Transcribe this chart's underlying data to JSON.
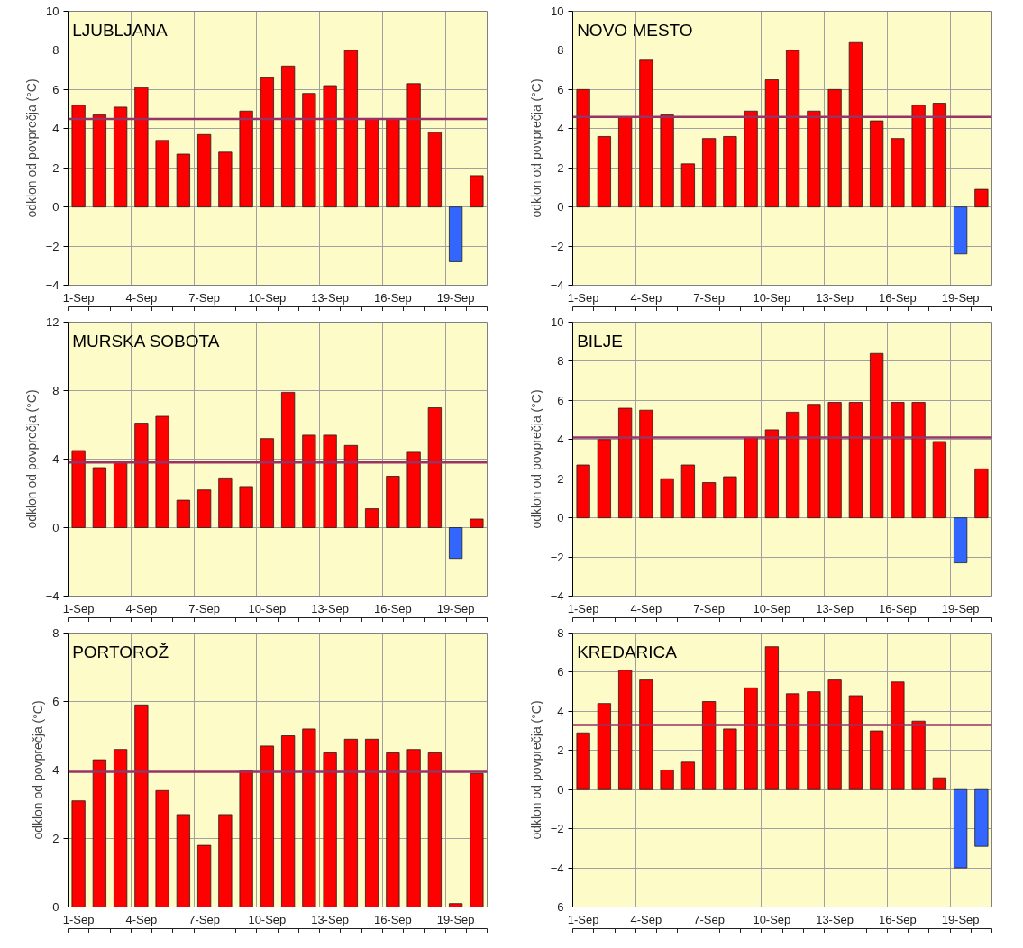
{
  "chart_data": [
    {
      "type": "bar",
      "title": "LJUBLJANA",
      "ylabel": "odklon od povprečja (°C)",
      "categories": [
        "1-Sep",
        null,
        null,
        "4-Sep",
        null,
        null,
        "7-Sep",
        null,
        null,
        "10-Sep",
        null,
        null,
        "13-Sep",
        null,
        null,
        "16-Sep",
        null,
        null,
        "19-Sep",
        null
      ],
      "values": [
        5.2,
        4.7,
        5.1,
        6.1,
        3.4,
        2.7,
        3.7,
        2.8,
        4.9,
        6.6,
        7.2,
        5.8,
        6.2,
        8.0,
        4.5,
        4.5,
        6.3,
        3.8,
        -2.8,
        1.6
      ],
      "colors": [
        "#ff0000",
        "#ff0000",
        "#ff0000",
        "#ff0000",
        "#ff0000",
        "#ff0000",
        "#ff0000",
        "#ff0000",
        "#ff0000",
        "#ff0000",
        "#ff0000",
        "#ff0000",
        "#ff0000",
        "#ff0000",
        "#ff0000",
        "#ff0000",
        "#ff0000",
        "#ff0000",
        "#3366ff",
        "#ff0000"
      ],
      "ylim": [
        -4,
        10
      ],
      "yticks": [
        -4,
        -2,
        0,
        2,
        4,
        6,
        8,
        10
      ],
      "grid": true,
      "ref_lines": [
        {
          "axis": "y",
          "value": 4.5,
          "color": "#993366"
        }
      ]
    },
    {
      "type": "bar",
      "title": "NOVO MESTO",
      "ylabel": "odklon od povprečja (°C)",
      "categories": [
        "1-Sep",
        null,
        null,
        "4-Sep",
        null,
        null,
        "7-Sep",
        null,
        null,
        "10-Sep",
        null,
        null,
        "13-Sep",
        null,
        null,
        "16-Sep",
        null,
        null,
        "19-Sep",
        null
      ],
      "values": [
        6.0,
        3.6,
        4.6,
        7.5,
        4.7,
        2.2,
        3.5,
        3.6,
        4.9,
        6.5,
        8.0,
        4.9,
        6.0,
        8.4,
        4.4,
        3.5,
        5.2,
        5.3,
        -2.4,
        0.9
      ],
      "colors": [
        "#ff0000",
        "#ff0000",
        "#ff0000",
        "#ff0000",
        "#ff0000",
        "#ff0000",
        "#ff0000",
        "#ff0000",
        "#ff0000",
        "#ff0000",
        "#ff0000",
        "#ff0000",
        "#ff0000",
        "#ff0000",
        "#ff0000",
        "#ff0000",
        "#ff0000",
        "#ff0000",
        "#3366ff",
        "#ff0000"
      ],
      "ylim": [
        -4,
        10
      ],
      "yticks": [
        -4,
        -2,
        0,
        2,
        4,
        6,
        8,
        10
      ],
      "grid": true,
      "ref_lines": [
        {
          "axis": "y",
          "value": 4.6,
          "color": "#993366"
        }
      ]
    },
    {
      "type": "bar",
      "title": "MURSKA SOBOTA",
      "ylabel": "odklon od povprečja (°C)",
      "categories": [
        "1-Sep",
        null,
        null,
        "4-Sep",
        null,
        null,
        "7-Sep",
        null,
        null,
        "10-Sep",
        null,
        null,
        "13-Sep",
        null,
        null,
        "16-Sep",
        null,
        null,
        "19-Sep",
        null
      ],
      "values": [
        4.5,
        3.5,
        3.8,
        6.1,
        6.5,
        1.6,
        2.2,
        2.9,
        2.4,
        5.2,
        7.9,
        5.4,
        5.4,
        4.8,
        1.1,
        3.0,
        4.4,
        7.0,
        -1.8,
        0.5
      ],
      "colors": [
        "#ff0000",
        "#ff0000",
        "#ff0000",
        "#ff0000",
        "#ff0000",
        "#ff0000",
        "#ff0000",
        "#ff0000",
        "#ff0000",
        "#ff0000",
        "#ff0000",
        "#ff0000",
        "#ff0000",
        "#ff0000",
        "#ff0000",
        "#ff0000",
        "#ff0000",
        "#ff0000",
        "#3366ff",
        "#ff0000"
      ],
      "ylim": [
        -4,
        12
      ],
      "yticks": [
        -4,
        0,
        4,
        8,
        12
      ],
      "grid": true,
      "ref_lines": [
        {
          "axis": "y",
          "value": 3.8,
          "color": "#993366"
        }
      ]
    },
    {
      "type": "bar",
      "title": "BILJE",
      "ylabel": "odklon od povprečja (°C)",
      "categories": [
        "1-Sep",
        null,
        null,
        "4-Sep",
        null,
        null,
        "7-Sep",
        null,
        null,
        "10-Sep",
        null,
        null,
        "13-Sep",
        null,
        null,
        "16-Sep",
        null,
        null,
        "19-Sep",
        null
      ],
      "values": [
        2.7,
        4.0,
        5.6,
        5.5,
        2.0,
        2.7,
        1.8,
        2.1,
        4.1,
        4.5,
        5.4,
        5.8,
        5.9,
        5.9,
        8.4,
        5.9,
        5.9,
        3.9,
        -2.3,
        2.5
      ],
      "colors": [
        "#ff0000",
        "#ff0000",
        "#ff0000",
        "#ff0000",
        "#ff0000",
        "#ff0000",
        "#ff0000",
        "#ff0000",
        "#ff0000",
        "#ff0000",
        "#ff0000",
        "#ff0000",
        "#ff0000",
        "#ff0000",
        "#ff0000",
        "#ff0000",
        "#ff0000",
        "#ff0000",
        "#3366ff",
        "#ff0000"
      ],
      "ylim": [
        -4,
        10
      ],
      "yticks": [
        -4,
        -2,
        0,
        2,
        4,
        6,
        8,
        10
      ],
      "grid": true,
      "ref_lines": [
        {
          "axis": "y",
          "value": 4.1,
          "color": "#993366"
        }
      ]
    },
    {
      "type": "bar",
      "title": "PORTOROŽ",
      "ylabel": "odklon od povprečja (°C)",
      "categories": [
        "1-Sep",
        null,
        null,
        "4-Sep",
        null,
        null,
        "7-Sep",
        null,
        null,
        "10-Sep",
        null,
        null,
        "13-Sep",
        null,
        null,
        "16-Sep",
        null,
        null,
        "19-Sep",
        null
      ],
      "values": [
        3.1,
        4.3,
        4.6,
        5.9,
        3.4,
        2.7,
        1.8,
        2.7,
        4.0,
        4.7,
        5.0,
        5.2,
        4.5,
        4.9,
        4.9,
        4.5,
        4.6,
        4.5,
        0.1,
        3.9
      ],
      "colors": [
        "#ff0000",
        "#ff0000",
        "#ff0000",
        "#ff0000",
        "#ff0000",
        "#ff0000",
        "#ff0000",
        "#ff0000",
        "#ff0000",
        "#ff0000",
        "#ff0000",
        "#ff0000",
        "#ff0000",
        "#ff0000",
        "#ff0000",
        "#ff0000",
        "#ff0000",
        "#ff0000",
        "#ff0000",
        "#ff0000"
      ],
      "ylim": [
        0,
        8
      ],
      "yticks": [
        0,
        2,
        4,
        6,
        8
      ],
      "grid": true,
      "ref_lines": [
        {
          "axis": "y",
          "value": 3.95,
          "color": "#993366"
        }
      ]
    },
    {
      "type": "bar",
      "title": "KREDARICA",
      "ylabel": "odklon od povprečja (°C)",
      "categories": [
        "1-Sep",
        null,
        null,
        "4-Sep",
        null,
        null,
        "7-Sep",
        null,
        null,
        "10-Sep",
        null,
        null,
        "13-Sep",
        null,
        null,
        "16-Sep",
        null,
        null,
        "19-Sep",
        null
      ],
      "values": [
        2.9,
        4.4,
        6.1,
        5.6,
        1.0,
        1.4,
        4.5,
        3.1,
        5.2,
        7.3,
        4.9,
        5.0,
        5.6,
        4.8,
        3.0,
        5.5,
        3.5,
        0.6,
        -4.0,
        -2.9
      ],
      "colors": [
        "#ff0000",
        "#ff0000",
        "#ff0000",
        "#ff0000",
        "#ff0000",
        "#ff0000",
        "#ff0000",
        "#ff0000",
        "#ff0000",
        "#ff0000",
        "#ff0000",
        "#ff0000",
        "#ff0000",
        "#ff0000",
        "#ff0000",
        "#ff0000",
        "#ff0000",
        "#ff0000",
        "#3366ff",
        "#3366ff"
      ],
      "ylim": [
        -6,
        8
      ],
      "yticks": [
        -6,
        -4,
        -2,
        0,
        2,
        4,
        6,
        8
      ],
      "grid": true,
      "ref_lines": [
        {
          "axis": "y",
          "value": 3.3,
          "color": "#993366"
        }
      ]
    }
  ]
}
